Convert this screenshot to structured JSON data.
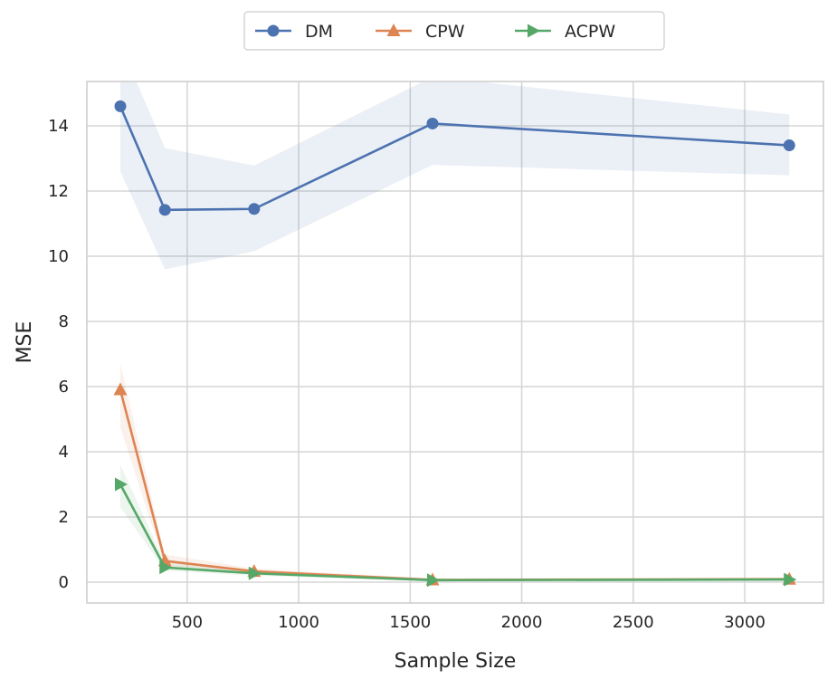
{
  "chart_data": {
    "type": "line",
    "title": "",
    "xlabel": "Sample Size",
    "ylabel": "MSE",
    "xlim": [
      50,
      3353
    ],
    "ylim": [
      -0.64,
      15.36
    ],
    "xticks": [
      500,
      1000,
      1500,
      2000,
      2500,
      3000
    ],
    "yticks": [
      0,
      2,
      4,
      6,
      8,
      10,
      12,
      14
    ],
    "grid": true,
    "legend_position": "top-center-outside",
    "x": [
      200,
      400,
      800,
      1600,
      3200
    ],
    "series": [
      {
        "name": "DM",
        "color": "#4c72b0",
        "marker": "circle",
        "values": [
          14.6,
          11.42,
          11.45,
          14.07,
          13.4
        ],
        "ci_lower": [
          12.6,
          9.6,
          10.15,
          12.8,
          12.48
        ],
        "ci_upper": [
          16.5,
          13.32,
          12.78,
          15.5,
          14.35
        ]
      },
      {
        "name": "CPW",
        "color": "#dd8452",
        "marker": "triangle-up",
        "values": [
          5.9,
          0.65,
          0.33,
          0.07,
          0.09
        ],
        "ci_lower": [
          4.75,
          0.5,
          0.25,
          0.04,
          0.05
        ],
        "ci_upper": [
          6.7,
          0.85,
          0.42,
          0.11,
          0.14
        ]
      },
      {
        "name": "ACPW",
        "color": "#55a868",
        "marker": "triangle-right",
        "values": [
          3.0,
          0.45,
          0.27,
          0.06,
          0.08
        ],
        "ci_lower": [
          2.3,
          0.35,
          0.2,
          0.03,
          0.05
        ],
        "ci_upper": [
          3.6,
          0.6,
          0.35,
          0.1,
          0.12
        ]
      }
    ]
  }
}
